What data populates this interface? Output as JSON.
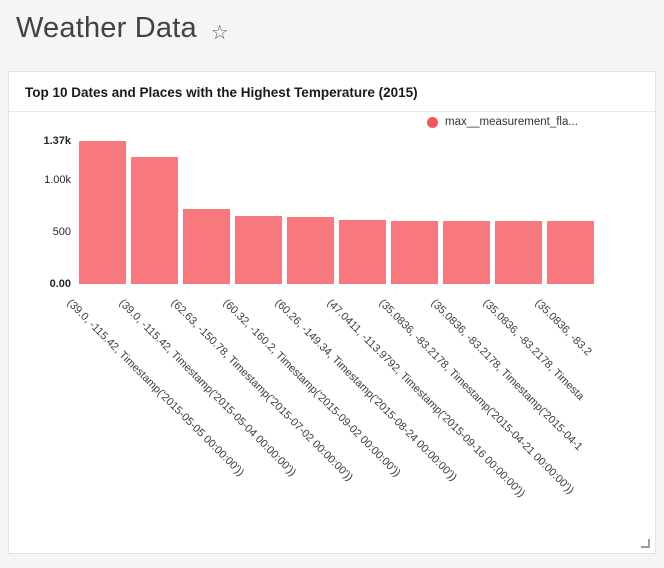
{
  "header": {
    "title": "Weather Data",
    "star_icon": "☆"
  },
  "colors": {
    "bar": "#f8797d",
    "legend_dot": "#f4555d"
  },
  "chart_data": {
    "type": "bar",
    "title": "Top 10 Dates and Places with the Highest Temperature (2015)",
    "series_name": "max__measurement_fla...",
    "legend_position": "top-right",
    "grid": false,
    "ylim": [
      0,
      1370
    ],
    "yticks": [
      {
        "value": 0,
        "label": "0.00",
        "bold": true
      },
      {
        "value": 500,
        "label": "500",
        "bold": false
      },
      {
        "value": 1000,
        "label": "1.00k",
        "bold": false
      },
      {
        "value": 1370,
        "label": "1.37k",
        "bold": true
      }
    ],
    "categories": [
      "(39.0, -115.42, Timestamp('2015-05-05 00:00:00'))",
      "(39.0, -115.42, Timestamp('2015-05-04 00:00:00'))",
      "(62.63, -150.78, Timestamp('2015-07-02 00:00:00'))",
      "(60.32, -160.2, Timestamp('2015-09-02 00:00:00'))",
      "(60.26, -149.34, Timestamp('2015-08-24 00:00:00'))",
      "(47.0411, -113.9792, Timestamp('2015-09-16 00:00:00'))",
      "(35.0836, -83.2178, Timestamp('2015-04-21 00:00:00'))",
      "(35.0836, -83.2178, Timestamp('2015-04-1",
      "(35.0836, -83.2178, Timesta",
      "(35.0836, -83.2"
    ],
    "values": [
      1370,
      1220,
      720,
      650,
      640,
      610,
      605,
      605,
      600,
      600
    ]
  }
}
